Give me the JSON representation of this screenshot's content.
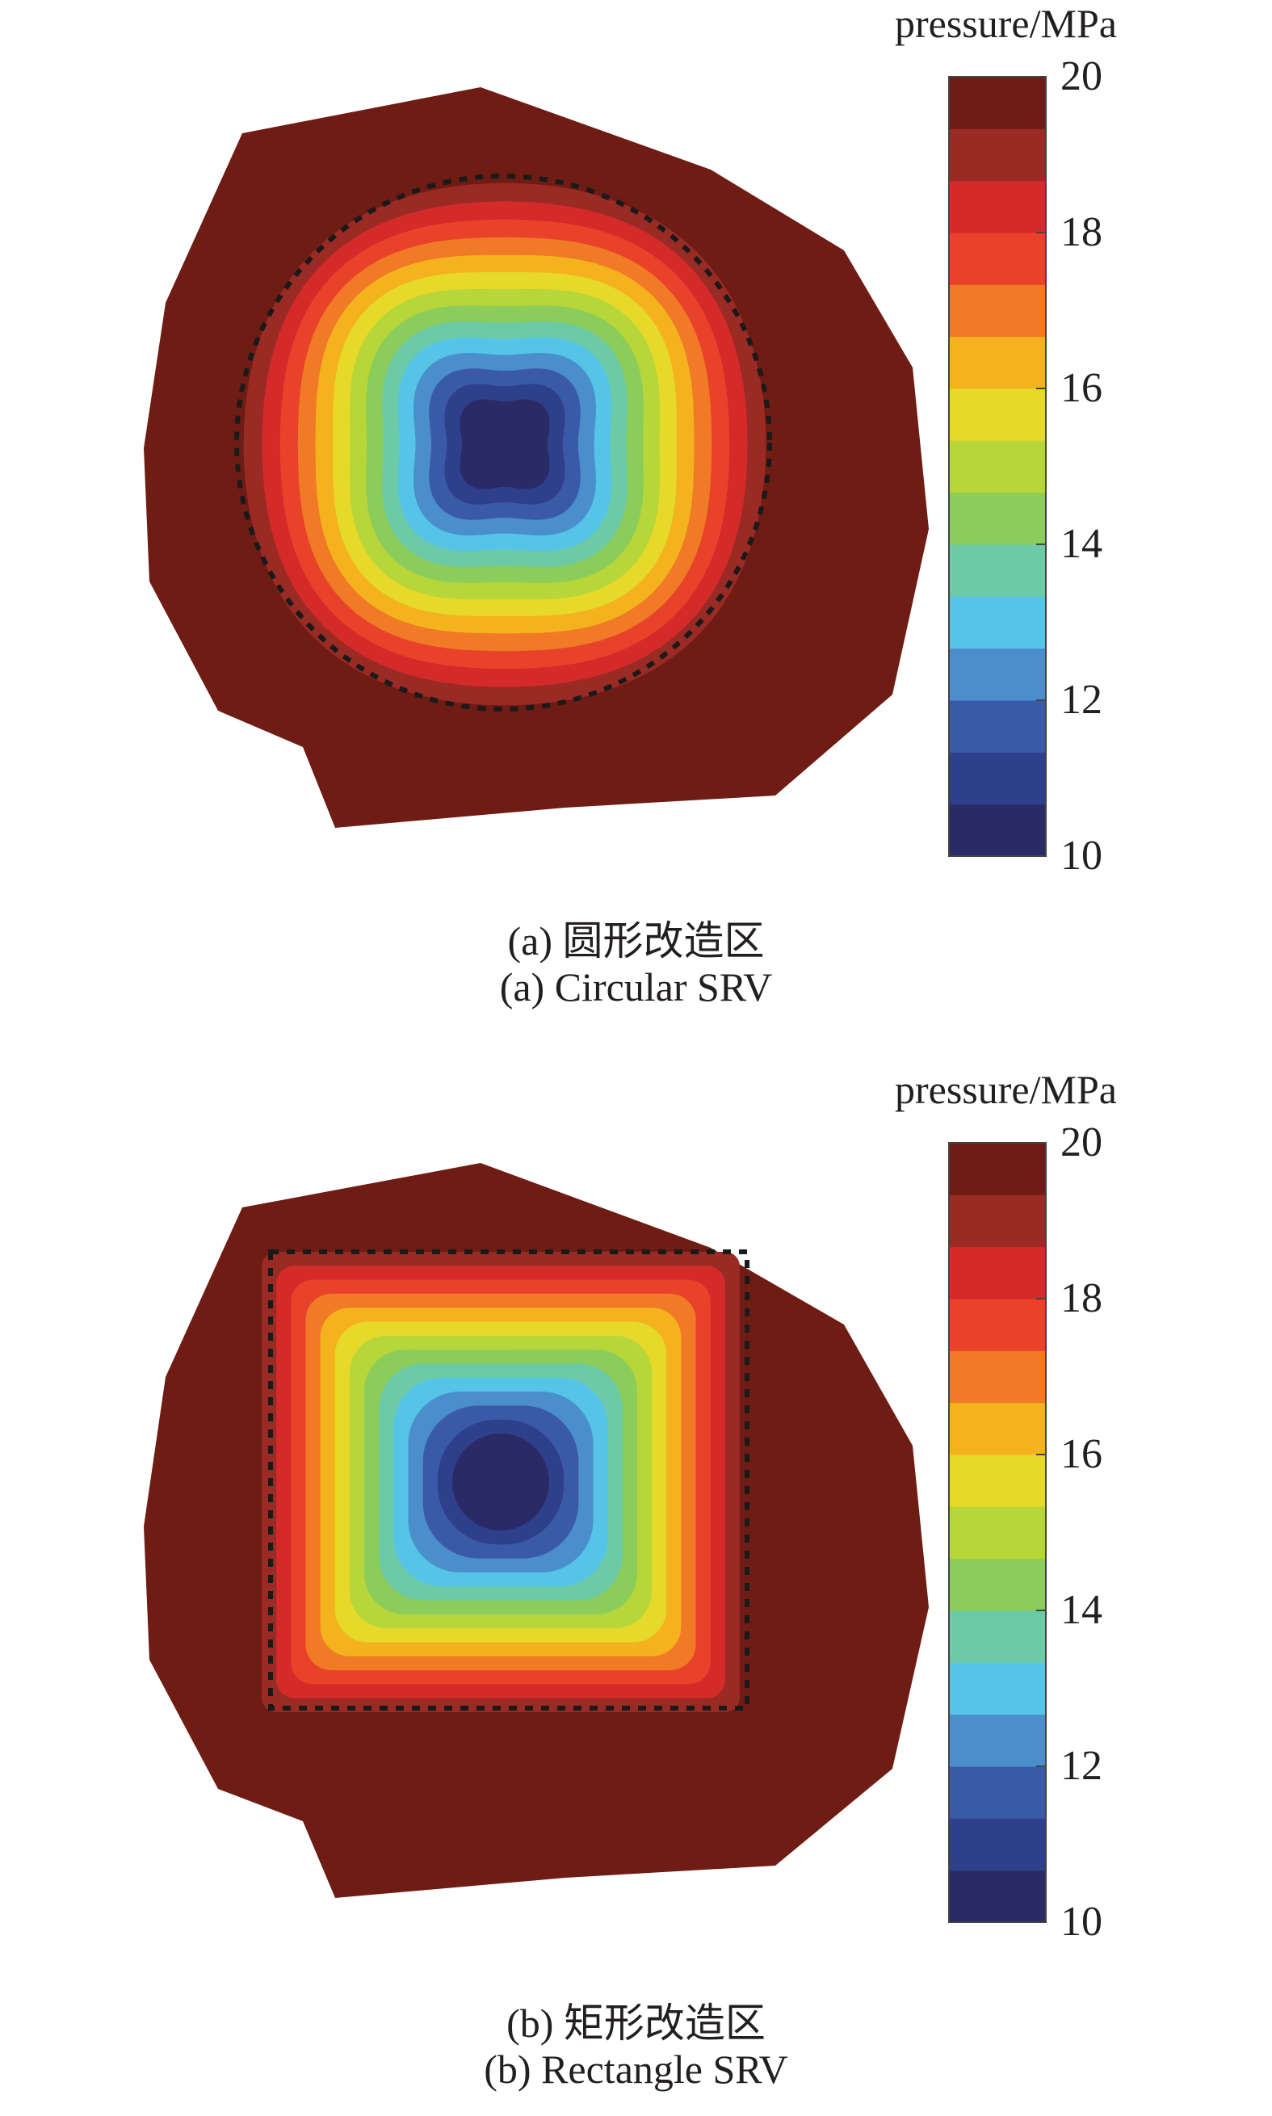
{
  "panels": [
    {
      "chart_data": {
        "type": "heatmap",
        "title": "",
        "colorbar": {
          "label": "pressure/MPa",
          "min": 10,
          "max": 20,
          "ticks": [
            20,
            18,
            16,
            14,
            12,
            10
          ]
        },
        "srv_shape": "circle",
        "field": {
          "ambient_pressure": 20,
          "min_pressure": 10
        }
      },
      "caption_cn": "(a) 圆形改造区",
      "caption_en": "(a) Circular SRV"
    },
    {
      "chart_data": {
        "type": "heatmap",
        "title": "",
        "colorbar": {
          "label": "pressure/MPa",
          "min": 10,
          "max": 20,
          "ticks": [
            20,
            18,
            16,
            14,
            12,
            10
          ]
        },
        "srv_shape": "rectangle",
        "field": {
          "ambient_pressure": 20,
          "min_pressure": 10
        }
      },
      "caption_cn": "(b) 矩形改造区",
      "caption_en": "(b) Rectangle SRV"
    }
  ],
  "colormap": [
    "#2a2a66",
    "#2e3f8c",
    "#3a5aa8",
    "#4a8ecc",
    "#55c4e6",
    "#6ccba6",
    "#8bcc5a",
    "#b6d63a",
    "#e6d92a",
    "#f5b21f",
    "#f07a26",
    "#e8432a",
    "#d42a2a",
    "#9a2a24",
    "#6e1c14"
  ]
}
